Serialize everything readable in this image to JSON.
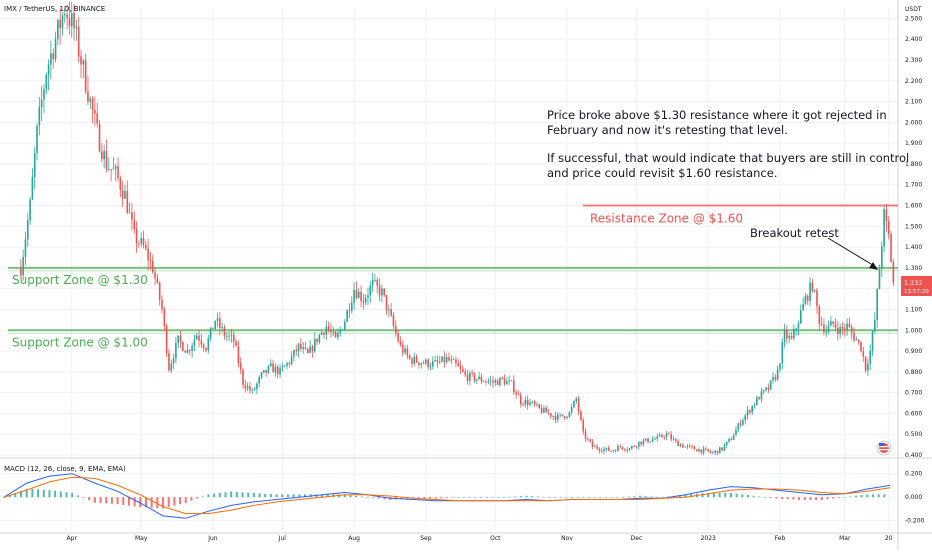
{
  "header": {
    "symbol": "IMX / TetherUS, 1D, BINANCE",
    "currency": "USDT"
  },
  "colors": {
    "up": "#26a69a",
    "down": "#ef5350",
    "support": "#4caf50",
    "resistance": "#ef5350",
    "macd_line": "#2962ff",
    "signal_line": "#ff6d00",
    "grid": "#eef0f3",
    "text": "#131722",
    "price_badge": "#ef5350"
  },
  "annotations": {
    "note_lines": [
      "Price broke above $1.30 resistance where it got rejected in",
      "February and now it's retesting that level.",
      "",
      "If successful, that would indicate that buyers are still in control",
      "and price could revisit $1.60 resistance."
    ],
    "breakout_label": "Breakout retest"
  },
  "current_price": {
    "value": "1.232",
    "countdown": "13:57:20"
  },
  "chart_data": [
    {
      "type": "candlestick",
      "title": "IMX / TetherUS, 1D, BINANCE",
      "y_unit": "USDT",
      "ylim": [
        0.4,
        2.55
      ],
      "x_tick_labels": [
        "Apr",
        "May",
        "Jun",
        "Jul",
        "Aug",
        "Sep",
        "Oct",
        "Nov",
        "Dec",
        "2023",
        "Feb",
        "Mar",
        "20"
      ],
      "y_ticks": [
        0.4,
        0.5,
        0.6,
        0.7,
        0.8,
        0.9,
        1.0,
        1.1,
        1.2,
        1.3,
        1.4,
        1.5,
        1.6,
        1.7,
        1.8,
        1.9,
        2.0,
        2.1,
        2.2,
        2.3,
        2.4,
        2.5
      ],
      "y_tick_labels": [
        "0.400",
        "0.500",
        "0.600",
        "0.700",
        "0.800",
        "0.900",
        "1.000",
        "1.100",
        "1.200",
        "1.300",
        "1.400",
        "1.500",
        "1.600",
        "1.700",
        "1.800",
        "1.900",
        "2.000",
        "2.100",
        "2.200",
        "2.300",
        "2.400",
        "2.500"
      ],
      "levels": [
        {
          "label": "Support Zone @ $1.30",
          "value": 1.3,
          "kind": "support"
        },
        {
          "label": "Support Zone @ $1.00",
          "value": 1.0,
          "kind": "support"
        },
        {
          "label": "Resistance Zone @ $1.60",
          "value": 1.6,
          "kind": "resistance"
        }
      ],
      "close_path": [
        [
          "2022-03-10",
          1.3
        ],
        [
          "2022-03-14",
          1.6
        ],
        [
          "2022-03-17",
          1.95
        ],
        [
          "2022-03-21",
          2.25
        ],
        [
          "2022-03-25",
          2.4
        ],
        [
          "2022-03-29",
          2.55
        ],
        [
          "2022-04-02",
          2.45
        ],
        [
          "2022-04-05",
          2.3
        ],
        [
          "2022-04-08",
          2.15
        ],
        [
          "2022-04-12",
          1.95
        ],
        [
          "2022-04-16",
          1.8
        ],
        [
          "2022-04-20",
          1.75
        ],
        [
          "2022-04-24",
          1.65
        ],
        [
          "2022-04-28",
          1.45
        ],
        [
          "2022-05-02",
          1.4
        ],
        [
          "2022-05-06",
          1.3
        ],
        [
          "2022-05-10",
          1.1
        ],
        [
          "2022-05-13",
          0.82
        ],
        [
          "2022-05-17",
          0.95
        ],
        [
          "2022-05-21",
          0.9
        ],
        [
          "2022-05-25",
          0.98
        ],
        [
          "2022-05-29",
          0.92
        ],
        [
          "2022-06-02",
          1.05
        ],
        [
          "2022-06-06",
          0.98
        ],
        [
          "2022-06-10",
          0.95
        ],
        [
          "2022-06-14",
          0.75
        ],
        [
          "2022-06-18",
          0.7
        ],
        [
          "2022-06-22",
          0.78
        ],
        [
          "2022-06-26",
          0.82
        ],
        [
          "2022-06-30",
          0.8
        ],
        [
          "2022-07-04",
          0.85
        ],
        [
          "2022-07-08",
          0.92
        ],
        [
          "2022-07-12",
          0.88
        ],
        [
          "2022-07-16",
          0.96
        ],
        [
          "2022-07-20",
          1.02
        ],
        [
          "2022-07-24",
          0.95
        ],
        [
          "2022-07-28",
          1.05
        ],
        [
          "2022-08-01",
          1.2
        ],
        [
          "2022-08-05",
          1.15
        ],
        [
          "2022-08-09",
          1.22
        ],
        [
          "2022-08-13",
          1.18
        ],
        [
          "2022-08-17",
          1.05
        ],
        [
          "2022-08-21",
          0.92
        ],
        [
          "2022-08-25",
          0.86
        ],
        [
          "2022-08-29",
          0.85
        ],
        [
          "2022-09-02",
          0.84
        ],
        [
          "2022-09-06",
          0.84
        ],
        [
          "2022-09-10",
          0.86
        ],
        [
          "2022-09-14",
          0.83
        ],
        [
          "2022-09-18",
          0.78
        ],
        [
          "2022-09-22",
          0.77
        ],
        [
          "2022-09-26",
          0.76
        ],
        [
          "2022-09-30",
          0.75
        ],
        [
          "2022-10-04",
          0.76
        ],
        [
          "2022-10-08",
          0.74
        ],
        [
          "2022-10-12",
          0.66
        ],
        [
          "2022-10-16",
          0.65
        ],
        [
          "2022-10-20",
          0.62
        ],
        [
          "2022-10-24",
          0.6
        ],
        [
          "2022-10-28",
          0.58
        ],
        [
          "2022-11-02",
          0.6
        ],
        [
          "2022-11-05",
          0.67
        ],
        [
          "2022-11-08",
          0.5
        ],
        [
          "2022-11-12",
          0.44
        ],
        [
          "2022-11-16",
          0.43
        ],
        [
          "2022-11-20",
          0.42
        ],
        [
          "2022-11-24",
          0.44
        ],
        [
          "2022-11-28",
          0.43
        ],
        [
          "2022-12-02",
          0.46
        ],
        [
          "2022-12-06",
          0.47
        ],
        [
          "2022-12-10",
          0.48
        ],
        [
          "2022-12-14",
          0.5
        ],
        [
          "2022-12-18",
          0.46
        ],
        [
          "2022-12-22",
          0.44
        ],
        [
          "2022-12-26",
          0.43
        ],
        [
          "2022-12-30",
          0.42
        ],
        [
          "2023-01-03",
          0.41
        ],
        [
          "2023-01-07",
          0.43
        ],
        [
          "2023-01-11",
          0.48
        ],
        [
          "2023-01-15",
          0.56
        ],
        [
          "2023-01-19",
          0.62
        ],
        [
          "2023-01-23",
          0.68
        ],
        [
          "2023-01-27",
          0.72
        ],
        [
          "2023-01-31",
          0.8
        ],
        [
          "2023-02-03",
          0.98
        ],
        [
          "2023-02-06",
          0.95
        ],
        [
          "2023-02-09",
          1.05
        ],
        [
          "2023-02-12",
          1.15
        ],
        [
          "2023-02-15",
          1.22
        ],
        [
          "2023-02-18",
          1.05
        ],
        [
          "2023-02-21",
          1.0
        ],
        [
          "2023-02-24",
          1.03
        ],
        [
          "2023-02-27",
          1.0
        ],
        [
          "2023-03-02",
          1.02
        ],
        [
          "2023-03-05",
          0.97
        ],
        [
          "2023-03-08",
          0.92
        ],
        [
          "2023-03-10",
          0.82
        ],
        [
          "2023-03-12",
          0.9
        ],
        [
          "2023-03-14",
          1.05
        ],
        [
          "2023-03-16",
          1.3
        ],
        [
          "2023-03-18",
          1.55
        ],
        [
          "2023-03-20",
          1.45
        ],
        [
          "2023-03-22",
          1.23
        ]
      ]
    },
    {
      "type": "macd",
      "title": "MACD (12, 26, close, 9, EMA, EMA)",
      "ylim": [
        -0.28,
        0.3
      ],
      "y_ticks": [
        0.2,
        0.0,
        -0.2
      ],
      "y_tick_labels": [
        "0.200",
        "0.000",
        "-0.200"
      ],
      "series": [
        {
          "name": "MACD",
          "values": [
            0.0,
            0.12,
            0.18,
            0.2,
            0.12,
            0.05,
            -0.05,
            -0.16,
            -0.18,
            -0.12,
            -0.07,
            -0.04,
            -0.02,
            0.0,
            0.02,
            0.04,
            0.02,
            -0.01,
            -0.02,
            -0.03,
            -0.03,
            -0.03,
            -0.03,
            -0.02,
            -0.03,
            -0.02,
            -0.02,
            -0.02,
            -0.01,
            -0.01,
            0.02,
            0.06,
            0.09,
            0.08,
            0.06,
            0.04,
            0.02,
            0.03,
            0.07,
            0.1
          ]
        },
        {
          "name": "Signal",
          "values": [
            0.0,
            0.06,
            0.13,
            0.17,
            0.16,
            0.1,
            0.02,
            -0.08,
            -0.14,
            -0.14,
            -0.11,
            -0.07,
            -0.04,
            -0.02,
            0.0,
            0.02,
            0.02,
            0.01,
            -0.01,
            -0.02,
            -0.03,
            -0.03,
            -0.03,
            -0.03,
            -0.03,
            -0.02,
            -0.02,
            -0.02,
            -0.02,
            -0.01,
            0.0,
            0.03,
            0.06,
            0.07,
            0.07,
            0.06,
            0.04,
            0.03,
            0.05,
            0.08
          ]
        }
      ]
    }
  ]
}
